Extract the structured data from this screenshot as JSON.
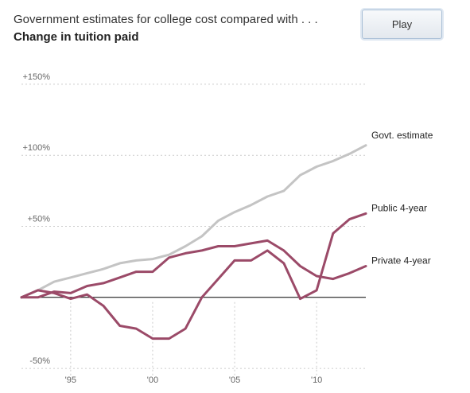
{
  "header": {
    "title": "Government estimates for college cost compared with . . .",
    "subtitle": "Change in tuition paid"
  },
  "controls": {
    "play_label": "Play"
  },
  "colors": {
    "govt": "#c4c4c4",
    "public": "#9b4a68",
    "private": "#9b4a68",
    "zero_line": "#000000",
    "grid": "#cccccc"
  },
  "chart_data": {
    "type": "line",
    "title": "Change in tuition paid",
    "xlabel": "",
    "ylabel": "",
    "xlim": [
      1992,
      2013
    ],
    "ylim": [
      -55,
      155
    ],
    "grid": true,
    "y_ticks": [
      {
        "value": 150,
        "label": "+150%"
      },
      {
        "value": 100,
        "label": "+100%"
      },
      {
        "value": 50,
        "label": "+50%"
      },
      {
        "value": -50,
        "label": "-50%"
      }
    ],
    "x_ticks": [
      {
        "value": 1995,
        "label": "'95"
      },
      {
        "value": 2000,
        "label": "'00"
      },
      {
        "value": 2005,
        "label": "'05"
      },
      {
        "value": 2010,
        "label": "'10"
      }
    ],
    "x": [
      1992,
      1993,
      1994,
      1995,
      1996,
      1997,
      1998,
      1999,
      2000,
      2001,
      2002,
      2003,
      2004,
      2005,
      2006,
      2007,
      2008,
      2009,
      2010,
      2011,
      2012,
      2013
    ],
    "series": [
      {
        "name": "Govt. estimate",
        "values": [
          0,
          5,
          11,
          14,
          17,
          20,
          24,
          26,
          27,
          30,
          36,
          43,
          54,
          60,
          65,
          71,
          75,
          86,
          92,
          96,
          101,
          107
        ]
      },
      {
        "name": "Public 4-year",
        "values": [
          0,
          0,
          4,
          3,
          8,
          10,
          14,
          18,
          18,
          28,
          31,
          33,
          36,
          36,
          38,
          40,
          33,
          22,
          15,
          13,
          17,
          22
        ]
      },
      {
        "name": "Private 4-year",
        "values": [
          0,
          5,
          3,
          -1,
          2,
          -6,
          -20,
          -22,
          -29,
          -29,
          -22,
          0,
          13,
          26,
          26,
          33,
          24,
          -1,
          5,
          45,
          55,
          59
        ]
      }
    ]
  }
}
